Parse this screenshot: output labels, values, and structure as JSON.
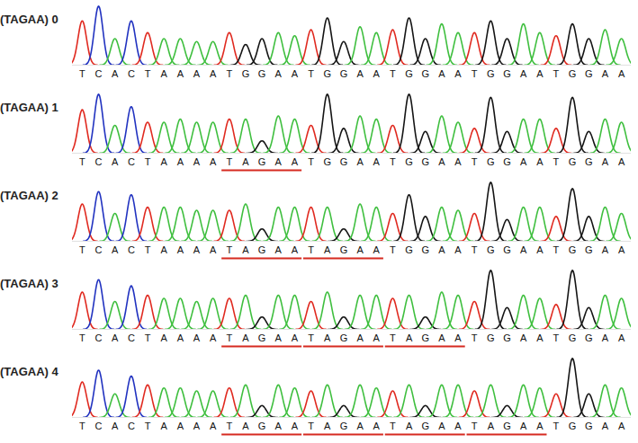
{
  "chart_data": {
    "type": "chromatogram",
    "tick_labels": false,
    "panels": [
      {
        "label": "(TAGAA) 0",
        "sequence": "TCACTAAAATGGAATGGAATGGAATGGAATGGAA",
        "heights": [
          75,
          100,
          45,
          75,
          55,
          45,
          45,
          40,
          40,
          55,
          35,
          45,
          55,
          50,
          60,
          80,
          40,
          65,
          55,
          60,
          80,
          45,
          70,
          55,
          55,
          75,
          45,
          70,
          55,
          50,
          70,
          45,
          60,
          45
        ],
        "underlines": []
      },
      {
        "label": "(TAGAA) 1",
        "sequence": "TCACTAAAATAGAATGGAATGGAATGGAATGGAA",
        "heights": [
          70,
          95,
          45,
          75,
          50,
          50,
          55,
          50,
          50,
          55,
          55,
          20,
          60,
          55,
          45,
          95,
          40,
          60,
          55,
          45,
          95,
          35,
          60,
          50,
          40,
          90,
          35,
          55,
          55,
          40,
          90,
          35,
          55,
          50
        ],
        "underlines": [
          [
            9,
            13
          ]
        ]
      },
      {
        "label": "(TAGAA) 2",
        "sequence": "TCACTAAAATAGAATAGAATGGAATGGAATGGAA",
        "heights": [
          60,
          80,
          45,
          75,
          55,
          55,
          55,
          50,
          50,
          50,
          60,
          20,
          55,
          55,
          55,
          55,
          20,
          60,
          55,
          45,
          75,
          40,
          55,
          50,
          45,
          95,
          35,
          55,
          55,
          40,
          85,
          40,
          55,
          45
        ],
        "underlines": [
          [
            9,
            13
          ],
          [
            14,
            18
          ]
        ]
      },
      {
        "label": "(TAGAA) 3",
        "sequence": "TCACTAAAATAGAATAGAATAGAATGGAATGGAA",
        "heights": [
          60,
          80,
          45,
          70,
          55,
          50,
          50,
          45,
          50,
          50,
          55,
          20,
          55,
          55,
          45,
          60,
          20,
          55,
          55,
          50,
          55,
          20,
          60,
          55,
          45,
          95,
          35,
          55,
          50,
          40,
          95,
          35,
          55,
          50
        ],
        "underlines": [
          [
            9,
            13
          ],
          [
            14,
            18
          ],
          [
            19,
            23
          ]
        ]
      },
      {
        "label": "(TAGAA) 4",
        "sequence": "TCACTAAAATAGAATAGAATAGAATAGAATGGAA",
        "heights": [
          60,
          80,
          40,
          70,
          55,
          50,
          50,
          45,
          45,
          50,
          55,
          20,
          55,
          50,
          45,
          55,
          20,
          55,
          50,
          45,
          55,
          20,
          55,
          55,
          45,
          55,
          20,
          55,
          50,
          40,
          100,
          40,
          55,
          50
        ],
        "underlines": [
          [
            9,
            13
          ],
          [
            14,
            18
          ],
          [
            19,
            23
          ],
          [
            24,
            28
          ]
        ]
      }
    ]
  }
}
